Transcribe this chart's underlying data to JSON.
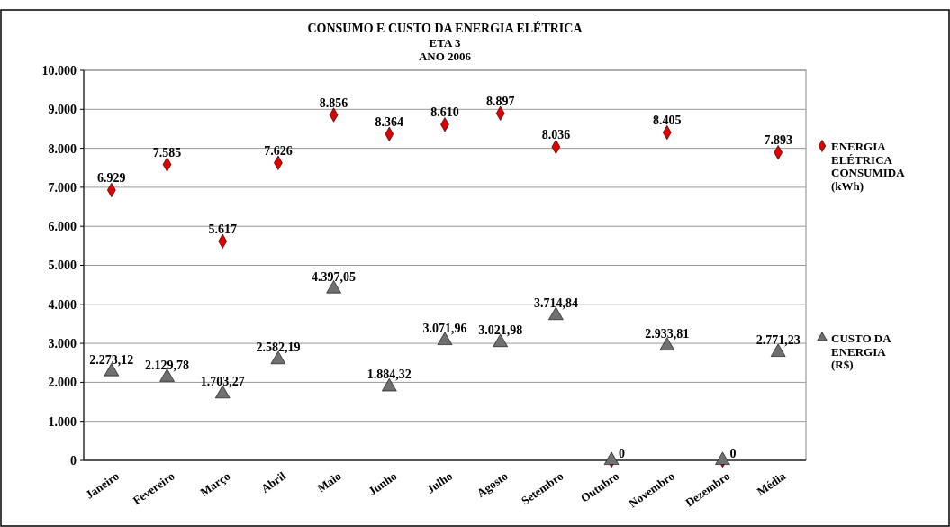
{
  "chart_data": {
    "type": "scatter",
    "title": "CONSUMO E CUSTO DA ENERGIA ELÉTRICA",
    "subtitle": "ETA 3\nANO 2006",
    "categories": [
      "Janeiro",
      "Fevereiro",
      "Março",
      "Abril",
      "Maio",
      "Junho",
      "Julho",
      "Agosto",
      "Setembro",
      "Outubro",
      "Novembro",
      "Dezembro",
      "Média"
    ],
    "series": [
      {
        "name": "ENERGIA ELÉTRICA CONSUMIDA (kWh)",
        "color": "#e00000",
        "marker": "diamond",
        "values": [
          6929,
          7585,
          5617,
          7626,
          8856,
          8364,
          8610,
          8897,
          8036,
          0,
          8405,
          0,
          7893
        ],
        "value_labels": [
          "6.929",
          "7.585",
          "5.617",
          "7.626",
          "8.856",
          "8.364",
          "8.610",
          "8.897",
          "8.036",
          null,
          "8.405",
          null,
          "7.893"
        ]
      },
      {
        "name": "CUSTO DA ENERGIA (R$)",
        "color": "#707070",
        "marker": "triangle",
        "values": [
          2273.12,
          2129.78,
          1703.27,
          2582.19,
          4397.05,
          1884.32,
          3071.96,
          3021.98,
          3714.84,
          0,
          2933.81,
          0,
          2771.23
        ],
        "value_labels": [
          "2.273,12",
          "2.129,78",
          "1.703,27",
          "2.582,19",
          "4.397,05",
          "1.884,32",
          "3.071,96",
          "3.021,98",
          "3.714,84",
          "0",
          "2.933,81",
          "0",
          "2.771,23"
        ]
      }
    ],
    "ylim": [
      0,
      10000
    ],
    "yticks": [
      {
        "value": 0,
        "label": "0"
      },
      {
        "value": 1000,
        "label": "1.000"
      },
      {
        "value": 2000,
        "label": "2.000"
      },
      {
        "value": 3000,
        "label": "3.000"
      },
      {
        "value": 4000,
        "label": "4.000"
      },
      {
        "value": 5000,
        "label": "5.000"
      },
      {
        "value": 6000,
        "label": "6.000"
      },
      {
        "value": 7000,
        "label": "7.000"
      },
      {
        "value": 8000,
        "label": "8.000"
      },
      {
        "value": 9000,
        "label": "9.000"
      },
      {
        "value": 10000,
        "label": "10.000"
      }
    ],
    "grid": "y",
    "legend": "right"
  }
}
